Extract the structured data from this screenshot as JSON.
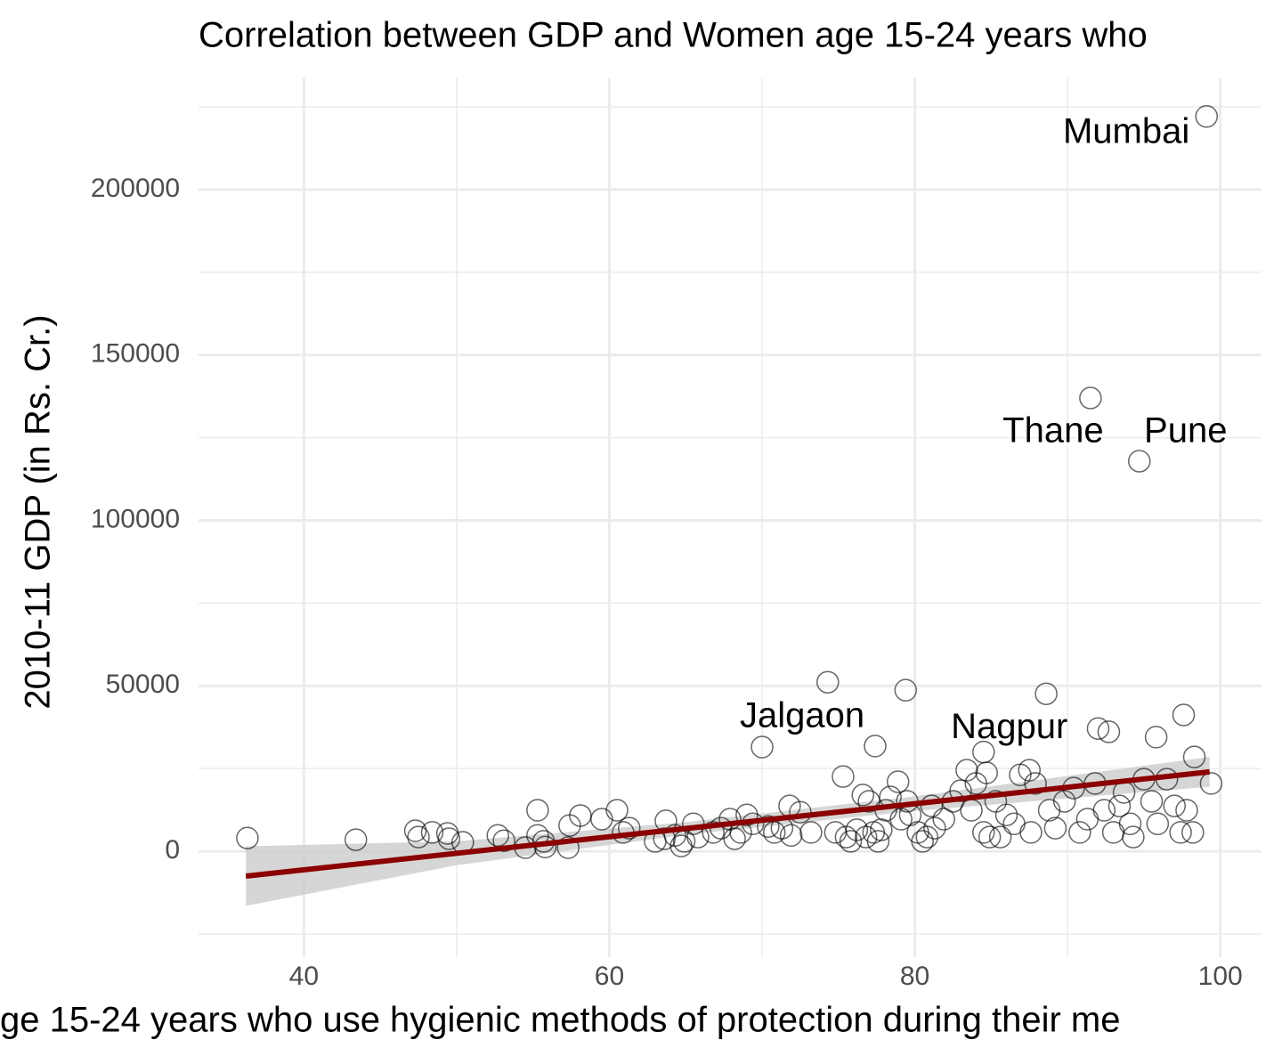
{
  "chart_data": {
    "type": "scatter",
    "title": "Correlation between GDP and Women age 15-24 years who",
    "x_label": "ge 15-24 years who use hygienic methods of protection during their me",
    "y_label": "2010-11 GDP (in Rs. Cr.)",
    "xlim": [
      33.1,
      102.7
    ],
    "ylim": [
      -32000,
      233600
    ],
    "xticks": [
      40,
      60,
      80,
      100
    ],
    "yticks": [
      0,
      50000,
      100000,
      150000,
      200000
    ],
    "xminor": [
      50,
      70,
      90
    ],
    "yminor": [
      -25000,
      25000,
      75000,
      125000,
      175000,
      225000
    ],
    "grid": true,
    "point_color": "#000000",
    "line_color": "#8b0000",
    "band_color": "#cccccc",
    "x": [
      36.3,
      43.4,
      47.3,
      47.5,
      48.4,
      49.4,
      49.5,
      50.4,
      52.7,
      53.1,
      54.5,
      55.3,
      55.3,
      55.7,
      55.8,
      57.3,
      57.4,
      58.1,
      59.5,
      60.5,
      60.9,
      61.3,
      63.0,
      63.6,
      63.7,
      64.3,
      64.7,
      64.9,
      65.5,
      65.8,
      66.8,
      67.3,
      67.9,
      68.2,
      68.6,
      69.0,
      69.4,
      70.4,
      70.8,
      71.3,
      71.8,
      71.9,
      72.5,
      73.2,
      74.3,
      74.8,
      75.3,
      75.5,
      75.8,
      76.2,
      76.6,
      76.8,
      77.0,
      77.3,
      77.4,
      77.6,
      77.8,
      78.1,
      78.4,
      78.9,
      79.1,
      79.4,
      79.5,
      79.7,
      80.2,
      80.5,
      80.8,
      81.1,
      81.3,
      81.9,
      82.5,
      83.0,
      83.4,
      83.7,
      84.0,
      84.5,
      84.7,
      84.9,
      85.3,
      85.6,
      86.0,
      86.5,
      86.9,
      87.5,
      87.6,
      87.9,
      88.6,
      88.8,
      89.2,
      89.8,
      90.4,
      90.8,
      91.3,
      91.8,
      92.0,
      92.4,
      92.7,
      93.0,
      93.4,
      93.7,
      94.1,
      94.3,
      95.0,
      95.5,
      95.8,
      95.9,
      96.5,
      97.0,
      97.4,
      97.6,
      97.8,
      98.2,
      98.3,
      99.4
    ],
    "y": [
      4000,
      3500,
      6200,
      4300,
      5700,
      5400,
      3800,
      2700,
      4800,
      3200,
      1100,
      12400,
      4800,
      3000,
      1300,
      1100,
      7800,
      10800,
      9700,
      12400,
      5700,
      7000,
      3000,
      3800,
      9200,
      4800,
      1600,
      3000,
      8300,
      4300,
      5700,
      7000,
      9700,
      3800,
      5700,
      11000,
      8300,
      7500,
      5700,
      7000,
      13700,
      4800,
      11800,
      5700,
      51100,
      5700,
      22600,
      4300,
      3000,
      6500,
      17000,
      4300,
      15100,
      5700,
      31800,
      3000,
      6500,
      12400,
      16400,
      21000,
      9700,
      48700,
      15100,
      11000,
      5700,
      3000,
      4300,
      13700,
      7000,
      9700,
      15100,
      18300,
      24500,
      12400,
      20500,
      5700,
      23700,
      4300,
      15100,
      4300,
      11000,
      8300,
      23100,
      24500,
      5700,
      20500,
      47600,
      12400,
      7000,
      15100,
      19100,
      5700,
      9700,
      20500,
      37100,
      12400,
      36100,
      5700,
      13700,
      17800,
      8300,
      4300,
      21800,
      15100,
      34500,
      8300,
      21800,
      13700,
      5700,
      41200,
      12400,
      5700,
      28500,
      20500
    ],
    "labels": [
      {
        "text": "Mumbai",
        "x": 99.1,
        "y": 222100
      },
      {
        "text": "Thane",
        "x": 91.5,
        "y": 137000
      },
      {
        "text": "Pune",
        "x": 94.7,
        "y": 117900
      },
      {
        "text": "Jalgaon",
        "x": 70.0,
        "y": 31500
      },
      {
        "text": "Nagpur",
        "x": 84.5,
        "y": 30000
      }
    ],
    "trend": {
      "x": [
        36.2,
        99.3
      ],
      "y": [
        -7500,
        24000
      ]
    },
    "band": {
      "x": [
        36.2,
        50,
        65,
        80,
        99.3
      ],
      "lower": [
        -16500,
        -4200,
        5000,
        12200,
        19500
      ],
      "upper": [
        1500,
        3000,
        8800,
        16600,
        28500
      ]
    }
  }
}
